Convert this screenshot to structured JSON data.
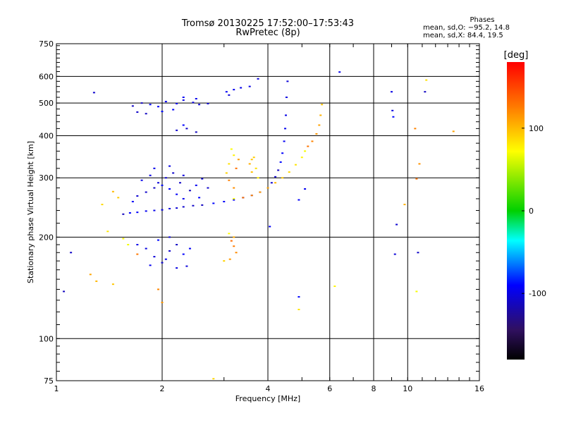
{
  "chart_data": {
    "type": "scatter",
    "title": "Tromsø 20130225 17:52:00–17:53:43",
    "subtitle": "RwPretec (8p)",
    "xlabel": "Frequency [MHz]",
    "ylabel": "Stationary phase Virtual Height [km]",
    "x_scale": "log",
    "y_scale": "log",
    "xlim": [
      1,
      16
    ],
    "ylim": [
      75,
      750
    ],
    "x_ticks": [
      1,
      2,
      4,
      6,
      8,
      10,
      16
    ],
    "y_ticks": [
      75,
      100,
      200,
      300,
      400,
      500,
      600,
      750
    ],
    "grid": true,
    "stats": {
      "heading": "Phases",
      "line_o": "mean, sd,O: −95.2, 14.8",
      "line_x": "mean, sd,X:  84.4, 19.5"
    },
    "colorbar": {
      "label": "[deg]",
      "range": [
        -180,
        180
      ],
      "ticks": [
        100,
        0,
        -100
      ],
      "colors": [
        "#ff0000",
        "#ff7a00",
        "#ffff00",
        "#00d000",
        "#00ffff",
        "#0000ff",
        "#301060",
        "#000000"
      ]
    },
    "series": [
      {
        "trace": "O-mode trace",
        "phase": -100,
        "points": [
          [
            1.55,
            234
          ],
          [
            1.62,
            236
          ],
          [
            1.7,
            237
          ],
          [
            1.8,
            239
          ],
          [
            1.9,
            240
          ],
          [
            2.0,
            241
          ],
          [
            2.1,
            243
          ],
          [
            2.2,
            244
          ],
          [
            2.3,
            246
          ],
          [
            2.45,
            248
          ],
          [
            2.6,
            249
          ],
          [
            2.8,
            252
          ],
          [
            3.0,
            255
          ],
          [
            3.2,
            258
          ],
          [
            3.4,
            262
          ],
          [
            3.6,
            266
          ],
          [
            3.8,
            272
          ],
          [
            4.0,
            280
          ],
          [
            4.1,
            290
          ],
          [
            4.2,
            302
          ],
          [
            4.28,
            316
          ],
          [
            4.35,
            334
          ],
          [
            4.4,
            355
          ],
          [
            4.45,
            385
          ],
          [
            4.48,
            420
          ],
          [
            4.5,
            460
          ],
          [
            4.52,
            520
          ],
          [
            4.55,
            580
          ],
          [
            1.7,
            265
          ],
          [
            1.8,
            272
          ],
          [
            1.9,
            280
          ],
          [
            2.0,
            285
          ],
          [
            2.1,
            278
          ],
          [
            2.2,
            268
          ],
          [
            2.3,
            260
          ],
          [
            1.75,
            295
          ],
          [
            1.85,
            305
          ],
          [
            1.95,
            290
          ],
          [
            2.05,
            300
          ],
          [
            2.15,
            310
          ],
          [
            2.25,
            290
          ],
          [
            2.4,
            275
          ],
          [
            2.55,
            262
          ],
          [
            1.65,
            255
          ],
          [
            2.5,
            285
          ],
          [
            1.9,
            320
          ],
          [
            2.1,
            325
          ],
          [
            2.3,
            305
          ],
          [
            2.6,
            298
          ],
          [
            2.7,
            280
          ],
          [
            1.65,
            490
          ],
          [
            1.75,
            500
          ],
          [
            1.85,
            495
          ],
          [
            1.95,
            488
          ],
          [
            2.05,
            505
          ],
          [
            2.2,
            498
          ],
          [
            2.3,
            510
          ],
          [
            2.45,
            502
          ],
          [
            2.55,
            495
          ],
          [
            2.7,
            498
          ],
          [
            1.7,
            470
          ],
          [
            1.8,
            465
          ],
          [
            2.0,
            472
          ],
          [
            2.15,
            478
          ],
          [
            2.3,
            520
          ],
          [
            2.5,
            515
          ],
          [
            1.7,
            190
          ],
          [
            1.8,
            185
          ],
          [
            1.9,
            175
          ],
          [
            2.0,
            168
          ],
          [
            2.1,
            182
          ],
          [
            2.2,
            190
          ],
          [
            1.95,
            196
          ],
          [
            2.3,
            178
          ],
          [
            2.4,
            185
          ],
          [
            1.85,
            165
          ],
          [
            2.05,
            172
          ],
          [
            2.2,
            162
          ],
          [
            2.35,
            164
          ],
          [
            2.1,
            200
          ],
          [
            2.2,
            415
          ],
          [
            2.35,
            420
          ],
          [
            2.5,
            410
          ],
          [
            2.3,
            430
          ],
          [
            3.05,
            540
          ],
          [
            3.2,
            548
          ],
          [
            3.35,
            555
          ],
          [
            3.55,
            560
          ],
          [
            3.75,
            590
          ],
          [
            3.1,
            528
          ],
          [
            1.28,
            537
          ],
          [
            1.1,
            180
          ],
          [
            1.05,
            138
          ],
          [
            4.9,
            133
          ],
          [
            4.9,
            258
          ],
          [
            5.1,
            278
          ],
          [
            6.4,
            618
          ],
          [
            9.0,
            540
          ],
          [
            9.05,
            475
          ],
          [
            9.2,
            178
          ],
          [
            9.3,
            218
          ],
          [
            10.7,
            180
          ],
          [
            11.2,
            540
          ],
          [
            9.1,
            455
          ],
          [
            4.05,
            215
          ]
        ]
      },
      {
        "trace": "X-mode trace",
        "phase": 100,
        "points": [
          [
            3.2,
            260
          ],
          [
            3.4,
            262
          ],
          [
            3.6,
            266
          ],
          [
            3.8,
            272
          ],
          [
            4.0,
            280
          ],
          [
            4.2,
            290
          ],
          [
            4.4,
            300
          ],
          [
            4.6,
            312
          ],
          [
            4.8,
            328
          ],
          [
            5.0,
            345
          ],
          [
            5.1,
            360
          ],
          [
            5.2,
            372
          ],
          [
            5.35,
            385
          ],
          [
            5.5,
            405
          ],
          [
            5.6,
            430
          ],
          [
            5.65,
            460
          ],
          [
            5.7,
            495
          ],
          [
            3.05,
            310
          ],
          [
            3.1,
            330
          ],
          [
            3.2,
            350
          ],
          [
            3.15,
            365
          ],
          [
            3.25,
            320
          ],
          [
            3.1,
            295
          ],
          [
            3.2,
            280
          ],
          [
            3.3,
            340
          ],
          [
            3.55,
            330
          ],
          [
            3.6,
            312
          ],
          [
            3.65,
            345
          ],
          [
            3.7,
            320
          ],
          [
            3.75,
            300
          ],
          [
            3.1,
            205
          ],
          [
            3.15,
            195
          ],
          [
            3.2,
            188
          ],
          [
            3.25,
            180
          ],
          [
            3.12,
            172
          ],
          [
            3.2,
            200
          ],
          [
            1.45,
            273
          ],
          [
            1.5,
            262
          ],
          [
            1.35,
            250
          ],
          [
            1.4,
            208
          ],
          [
            1.55,
            198
          ],
          [
            1.6,
            190
          ],
          [
            1.7,
            178
          ],
          [
            1.95,
            140
          ],
          [
            2.0,
            128
          ],
          [
            1.25,
            155
          ],
          [
            1.3,
            148
          ],
          [
            1.45,
            145
          ],
          [
            2.8,
            76
          ],
          [
            4.9,
            122
          ],
          [
            6.2,
            143
          ],
          [
            10.6,
            138
          ],
          [
            10.6,
            298
          ],
          [
            10.5,
            420
          ],
          [
            10.8,
            330
          ],
          [
            13.5,
            412
          ],
          [
            9.8,
            250
          ],
          [
            3.6,
            340
          ],
          [
            3.0,
            170
          ],
          [
            11.3,
            585
          ]
        ]
      }
    ]
  }
}
